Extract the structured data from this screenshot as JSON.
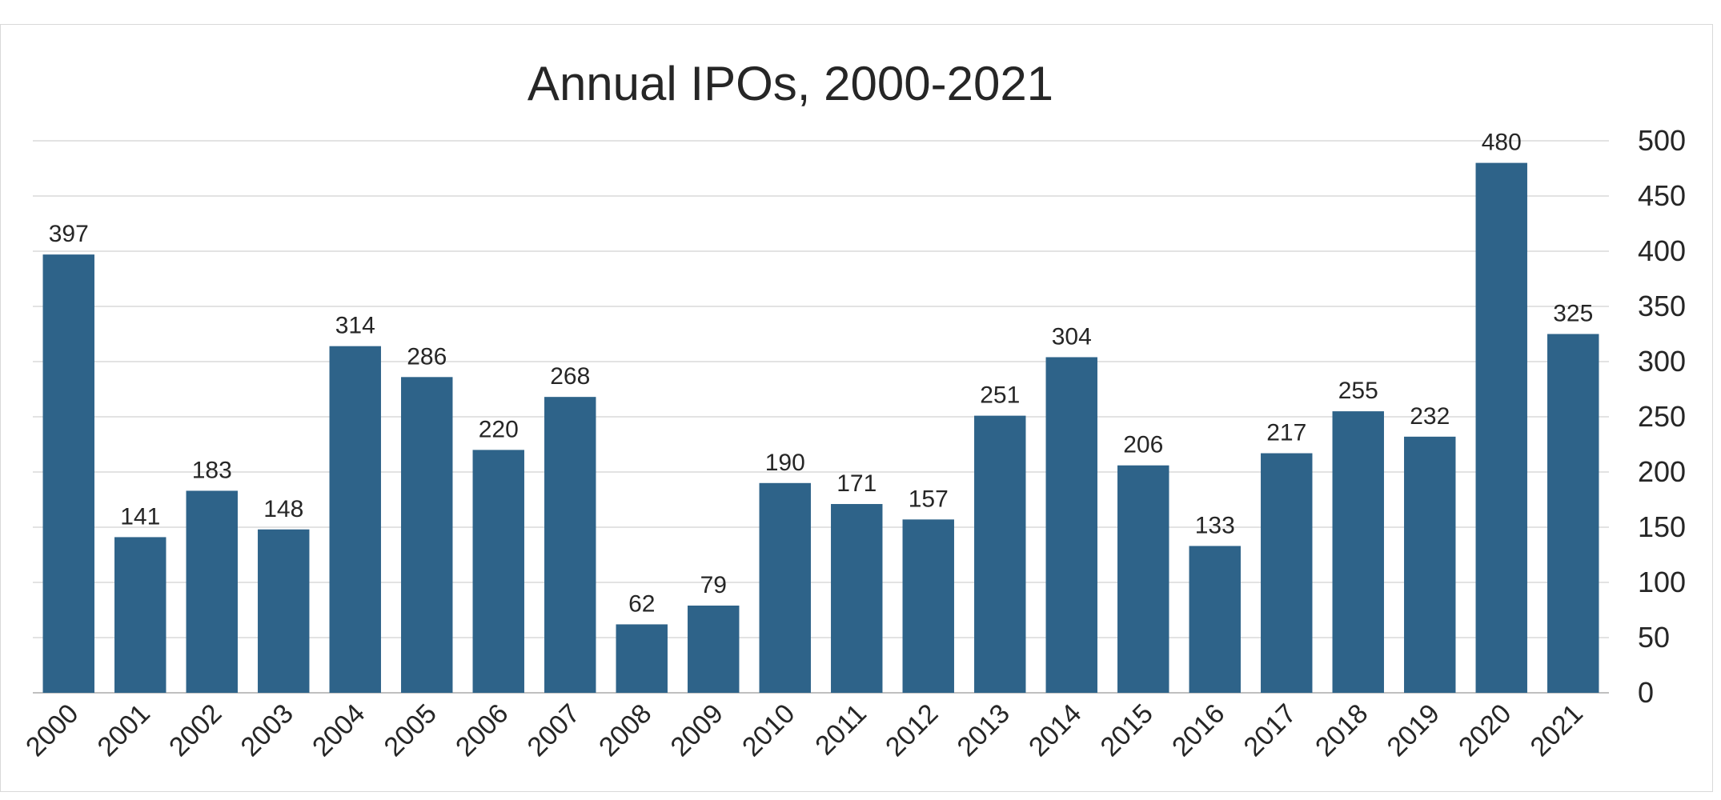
{
  "chart_data": {
    "type": "bar",
    "title": "Annual IPOs, 2000-2021",
    "xlabel": "",
    "ylabel": "",
    "categories": [
      "2000",
      "2001",
      "2002",
      "2003",
      "2004",
      "2005",
      "2006",
      "2007",
      "2008",
      "2009",
      "2010",
      "2011",
      "2012",
      "2013",
      "2014",
      "2015",
      "2016",
      "2017",
      "2018",
      "2019",
      "2020",
      "2021"
    ],
    "values": [
      397,
      141,
      183,
      148,
      314,
      286,
      220,
      268,
      62,
      79,
      190,
      171,
      157,
      251,
      304,
      206,
      133,
      217,
      255,
      232,
      480,
      325
    ],
    "ylim": [
      0,
      500
    ],
    "yticks": [
      0,
      50,
      100,
      150,
      200,
      250,
      300,
      350,
      400,
      450,
      500
    ],
    "y_axis_side": "right",
    "grid": true,
    "data_labels": true,
    "legend": "none",
    "bar_color": "#2e6389"
  }
}
